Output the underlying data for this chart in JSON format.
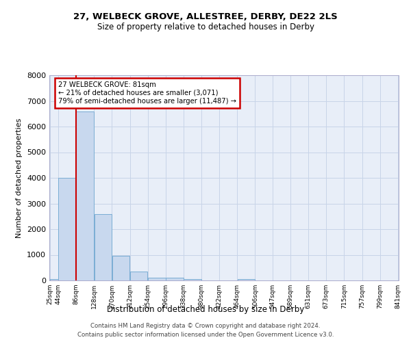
{
  "title1": "27, WELBECK GROVE, ALLESTREE, DERBY, DE22 2LS",
  "title2": "Size of property relative to detached houses in Derby",
  "xlabel": "Distribution of detached houses by size in Derby",
  "ylabel": "Number of detached properties",
  "annotation_line1": "27 WELBECK GROVE: 81sqm",
  "annotation_line2": "← 21% of detached houses are smaller (3,071)",
  "annotation_line3": "79% of semi-detached houses are larger (11,487) →",
  "footer1": "Contains HM Land Registry data © Crown copyright and database right 2024.",
  "footer2": "Contains public sector information licensed under the Open Government Licence v3.0.",
  "bar_color": "#c8d8ee",
  "bar_edge_color": "#7aadd4",
  "grid_color": "#c8d4e8",
  "property_line_color": "#cc0000",
  "annotation_box_color": "#ffffff",
  "annotation_box_edge": "#cc0000",
  "bins": [
    25,
    44,
    86,
    128,
    170,
    212,
    254,
    296,
    338,
    380,
    422,
    464,
    506,
    547,
    589,
    631,
    673,
    715,
    757,
    799,
    841
  ],
  "heights": [
    60,
    4000,
    6600,
    2600,
    960,
    340,
    120,
    110,
    50,
    0,
    0,
    60,
    0,
    0,
    0,
    0,
    0,
    0,
    0,
    0
  ],
  "tick_labels": [
    "25sqm",
    "44sqm",
    "86sqm",
    "128sqm",
    "170sqm",
    "212sqm",
    "254sqm",
    "296sqm",
    "338sqm",
    "380sqm",
    "422sqm",
    "464sqm",
    "506sqm",
    "547sqm",
    "589sqm",
    "631sqm",
    "673sqm",
    "715sqm",
    "757sqm",
    "799sqm",
    "841sqm"
  ],
  "ylim": [
    0,
    8000
  ],
  "yticks": [
    0,
    1000,
    2000,
    3000,
    4000,
    5000,
    6000,
    7000,
    8000
  ],
  "background_color": "#ffffff",
  "plot_bg_color": "#e8eef8"
}
